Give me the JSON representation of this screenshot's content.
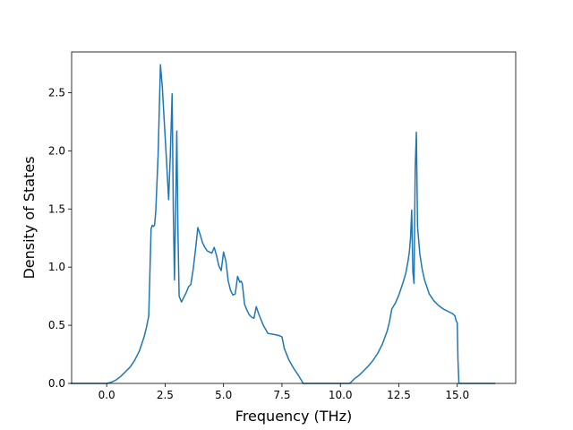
{
  "chart_data": {
    "type": "line",
    "title": "",
    "xlabel": "Frequency (THz)",
    "ylabel": "Density of States",
    "xlim": [
      -1.5,
      17.5
    ],
    "ylim": [
      0.0,
      2.85
    ],
    "xticks": [
      0.0,
      2.5,
      5.0,
      7.5,
      10.0,
      12.5,
      15.0
    ],
    "xtick_labels": [
      "0.0",
      "2.5",
      "5.0",
      "7.5",
      "10.0",
      "12.5",
      "15.0"
    ],
    "yticks": [
      0.0,
      0.5,
      1.0,
      1.5,
      2.0,
      2.5
    ],
    "ytick_labels": [
      "0.0",
      "0.5",
      "1.0",
      "1.5",
      "2.0",
      "2.5"
    ],
    "grid": false,
    "line_color": "#1f77b4",
    "series": [
      {
        "x": [
          -1.52,
          -0.5,
          0.0,
          0.2,
          0.4,
          0.6,
          0.8,
          1.0,
          1.2,
          1.4,
          1.6,
          1.7,
          1.8,
          1.9,
          1.95,
          2.0,
          2.05,
          2.1,
          2.2,
          2.3,
          2.38,
          2.45,
          2.55,
          2.65,
          2.72,
          2.8,
          2.85,
          2.9,
          2.95,
          3.0,
          3.05,
          3.1,
          3.2,
          3.3,
          3.4,
          3.5,
          3.6,
          3.7,
          3.8,
          3.9,
          4.0,
          4.1,
          4.2,
          4.3,
          4.4,
          4.5,
          4.6,
          4.7,
          4.8,
          4.9,
          5.0,
          5.1,
          5.2,
          5.3,
          5.4,
          5.5,
          5.6,
          5.7,
          5.75,
          5.8,
          5.9,
          6.0,
          6.1,
          6.2,
          6.3,
          6.4,
          6.5,
          6.6,
          6.7,
          6.9,
          7.2,
          7.4,
          7.5,
          7.6,
          7.8,
          8.0,
          8.2,
          8.35,
          8.4,
          9.0,
          10.0,
          10.4,
          10.6,
          10.8,
          11.0,
          11.2,
          11.4,
          11.6,
          11.8,
          12.0,
          12.1,
          12.2,
          12.35,
          12.5,
          12.6,
          12.7,
          12.8,
          12.9,
          12.95,
          13.0,
          13.05,
          13.1,
          13.15,
          13.2,
          13.25,
          13.3,
          13.4,
          13.5,
          13.6,
          13.8,
          14.0,
          14.2,
          14.4,
          14.6,
          14.8,
          14.9,
          14.95,
          15.0,
          15.03,
          15.07,
          15.2,
          16.0,
          16.6
        ],
        "y": [
          0.0,
          0.0,
          0.0,
          0.01,
          0.03,
          0.06,
          0.1,
          0.14,
          0.2,
          0.28,
          0.4,
          0.48,
          0.58,
          1.33,
          1.36,
          1.35,
          1.36,
          1.48,
          1.96,
          2.74,
          2.55,
          2.3,
          1.95,
          1.58,
          1.95,
          2.49,
          1.5,
          0.89,
          1.5,
          2.17,
          1.3,
          0.75,
          0.7,
          0.74,
          0.78,
          0.83,
          0.85,
          0.98,
          1.15,
          1.34,
          1.28,
          1.21,
          1.17,
          1.14,
          1.13,
          1.12,
          1.17,
          1.1,
          1.01,
          0.97,
          1.13,
          1.05,
          0.88,
          0.8,
          0.76,
          0.77,
          0.92,
          0.87,
          0.88,
          0.86,
          0.68,
          0.63,
          0.59,
          0.57,
          0.56,
          0.66,
          0.6,
          0.55,
          0.5,
          0.43,
          0.42,
          0.41,
          0.4,
          0.3,
          0.2,
          0.13,
          0.07,
          0.02,
          0.0,
          0.0,
          0.0,
          0.0,
          0.04,
          0.07,
          0.11,
          0.15,
          0.2,
          0.26,
          0.34,
          0.45,
          0.53,
          0.64,
          0.69,
          0.76,
          0.82,
          0.88,
          0.95,
          1.06,
          1.13,
          1.25,
          1.49,
          0.96,
          0.86,
          1.85,
          2.16,
          1.35,
          1.11,
          0.98,
          0.89,
          0.77,
          0.71,
          0.67,
          0.64,
          0.62,
          0.6,
          0.58,
          0.54,
          0.52,
          0.2,
          0.0,
          0.0,
          0.0,
          0.0
        ]
      }
    ]
  }
}
